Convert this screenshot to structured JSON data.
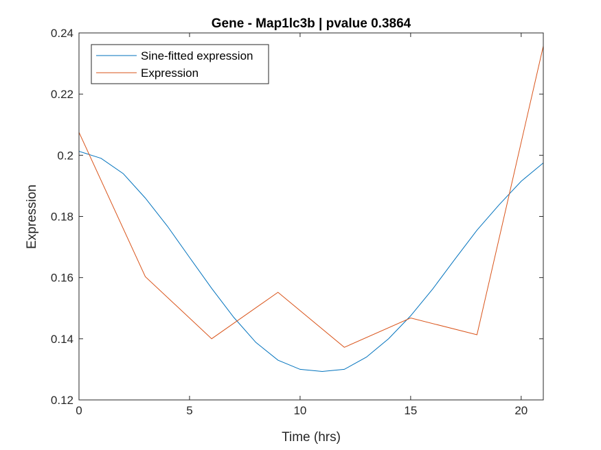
{
  "chart_data": {
    "type": "line",
    "title": "Gene - Map1lc3b | pvalue 0.3864",
    "xlabel": "Time (hrs)",
    "ylabel": "Expression",
    "xlim": [
      0,
      21
    ],
    "ylim": [
      0.12,
      0.24
    ],
    "xticks": [
      0,
      5,
      10,
      15,
      20
    ],
    "yticks": [
      0.12,
      0.14,
      0.16,
      0.18,
      0.2,
      0.22,
      0.24
    ],
    "xtick_labels": [
      "0",
      "5",
      "10",
      "15",
      "20"
    ],
    "ytick_labels": [
      "0.12",
      "0.14",
      "0.16",
      "0.18",
      "0.2",
      "0.22",
      "0.24"
    ],
    "grid": false,
    "legend_position": "top-left",
    "series": [
      {
        "name": "Sine-fitted expression",
        "color": "#0072BD",
        "x": [
          0,
          1,
          2,
          3,
          4,
          5,
          6,
          7,
          8,
          9,
          10,
          11,
          12,
          13,
          14,
          15,
          16,
          17,
          18,
          19,
          20,
          21
        ],
        "y": [
          0.2013,
          0.199,
          0.194,
          0.186,
          0.1768,
          0.1666,
          0.1565,
          0.147,
          0.1388,
          0.133,
          0.13,
          0.1293,
          0.13,
          0.134,
          0.14,
          0.1475,
          0.1563,
          0.166,
          0.1755,
          0.1838,
          0.1915,
          0.1975
        ]
      },
      {
        "name": "Expression",
        "color": "#D95319",
        "x": [
          0,
          3,
          6,
          9,
          12,
          15,
          18,
          21
        ],
        "y": [
          0.2075,
          0.1603,
          0.14,
          0.1552,
          0.1372,
          0.1468,
          0.1413,
          0.2357
        ]
      }
    ]
  }
}
